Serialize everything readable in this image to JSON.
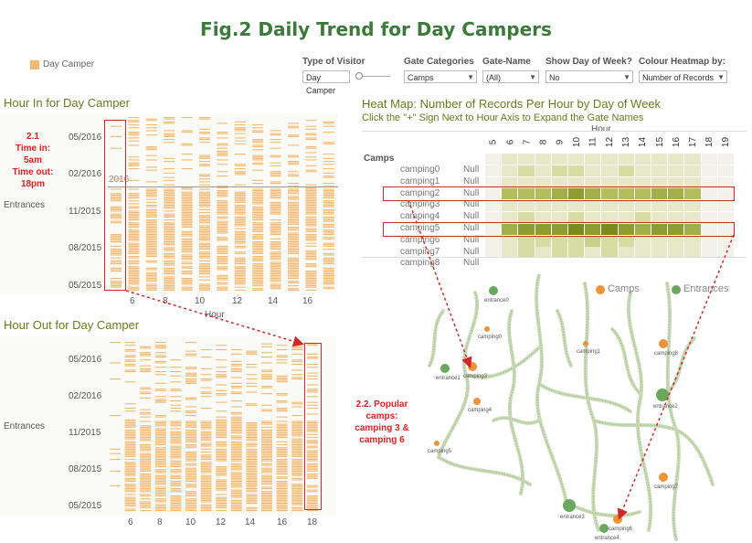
{
  "title": "Fig.2 Daily Trend for Day Campers",
  "legend_top": {
    "label": "Day Camper",
    "color": "#f5b870"
  },
  "controls": {
    "visitor": {
      "label": "Type of Visitor",
      "value": "Day Camper"
    },
    "gate_categories": {
      "label": "Gate Categories",
      "value": "Camps"
    },
    "gate_name": {
      "label": "Gate-Name",
      "value": "(All)"
    },
    "show_dow": {
      "label": "Show Day of Week?",
      "value": "No"
    },
    "colour_by": {
      "label": "Colour Heatmap by:",
      "value": "Number of Records"
    }
  },
  "hour_in": {
    "title": "Hour In for Day Camper",
    "y_label": "Entrances",
    "y_ticks": [
      "05/2016",
      "02/2016",
      "11/2015",
      "08/2015",
      "05/2015"
    ],
    "year_marker": "2016",
    "x_ticks": [
      "6",
      "8",
      "10",
      "12",
      "14",
      "16"
    ],
    "x_label": "Hour",
    "annotation": [
      "2.1",
      "Time in:",
      "5am",
      "Time out:",
      "18pm"
    ]
  },
  "hour_out": {
    "title": "Hour Out  for Day Camper",
    "y_label": "Entrances",
    "y_ticks": [
      "05/2016",
      "02/2016",
      "11/2015",
      "08/2015",
      "05/2015"
    ],
    "x_ticks": [
      "6",
      "8",
      "10",
      "12",
      "14",
      "16",
      "18"
    ]
  },
  "heatmap": {
    "title": "Heat Map: Number of Records  Per Hour by Day of Week",
    "subtitle": "Click the \"+\" Sign Next to Hour Axis to Expand the Gate Names",
    "x_header": "Hour",
    "category": "Camps",
    "hours": [
      "5",
      "6",
      "7",
      "8",
      "9",
      "10",
      "11",
      "12",
      "13",
      "14",
      "15",
      "16",
      "17",
      "18",
      "19"
    ],
    "rows": [
      {
        "name": "camping0",
        "null": "Null",
        "values": [
          0,
          1,
          1,
          1,
          1,
          1,
          1,
          1,
          1,
          1,
          1,
          1,
          1,
          0,
          0
        ]
      },
      {
        "name": "camping1",
        "null": "Null",
        "values": [
          0,
          1,
          2,
          1,
          2,
          2,
          1,
          1,
          2,
          1,
          1,
          1,
          1,
          0,
          0
        ]
      },
      {
        "name": "camping2",
        "null": "Null",
        "values": [
          0,
          1,
          1,
          1,
          1,
          1,
          1,
          1,
          1,
          1,
          1,
          1,
          1,
          0,
          0
        ]
      },
      {
        "name": "camping3",
        "null": "Null",
        "values": [
          0,
          4,
          4,
          4,
          5,
          6,
          5,
          4,
          4,
          4,
          5,
          5,
          4,
          0,
          0
        ]
      },
      {
        "name": "camping4",
        "null": "Null",
        "values": [
          0,
          1,
          1,
          1,
          1,
          1,
          1,
          1,
          1,
          1,
          1,
          1,
          1,
          0,
          0
        ]
      },
      {
        "name": "camping5",
        "null": "Null",
        "values": [
          0,
          1,
          2,
          1,
          1,
          2,
          1,
          1,
          1,
          2,
          1,
          1,
          1,
          0,
          0
        ]
      },
      {
        "name": "camping6",
        "null": "Null",
        "values": [
          0,
          5,
          6,
          6,
          6,
          7,
          6,
          7,
          6,
          5,
          6,
          6,
          5,
          0,
          0
        ]
      },
      {
        "name": "camping7",
        "null": "Null",
        "values": [
          0,
          1,
          2,
          2,
          2,
          2,
          3,
          2,
          2,
          1,
          1,
          1,
          1,
          0,
          0
        ]
      },
      {
        "name": "camping8",
        "null": "Null",
        "values": [
          0,
          1,
          2,
          1,
          2,
          2,
          1,
          2,
          1,
          1,
          1,
          1,
          1,
          0,
          0
        ]
      }
    ]
  },
  "map": {
    "legend": [
      {
        "label": "Camps",
        "color": "#f0923a"
      },
      {
        "label": "Entrances",
        "color": "#6aa860"
      }
    ],
    "nodes": [
      {
        "label": "entrance0",
        "type": "entrance"
      },
      {
        "label": "camping0",
        "type": "camp"
      },
      {
        "label": "camping1",
        "type": "camp"
      },
      {
        "label": "camping8",
        "type": "camp"
      },
      {
        "label": "entrance1",
        "type": "entrance"
      },
      {
        "label": "camping3",
        "type": "camp"
      },
      {
        "label": "camping4",
        "type": "camp"
      },
      {
        "label": "entrance2",
        "type": "entrance"
      },
      {
        "label": "camping5",
        "type": "camp"
      },
      {
        "label": "camping7",
        "type": "camp"
      },
      {
        "label": "entrance3",
        "type": "entrance"
      },
      {
        "label": "camping6",
        "type": "camp"
      },
      {
        "label": "entrance4",
        "type": "entrance"
      }
    ],
    "annotation": [
      "2.2. Popular",
      "camps:",
      "camping 3 &",
      "camping 6"
    ]
  }
}
